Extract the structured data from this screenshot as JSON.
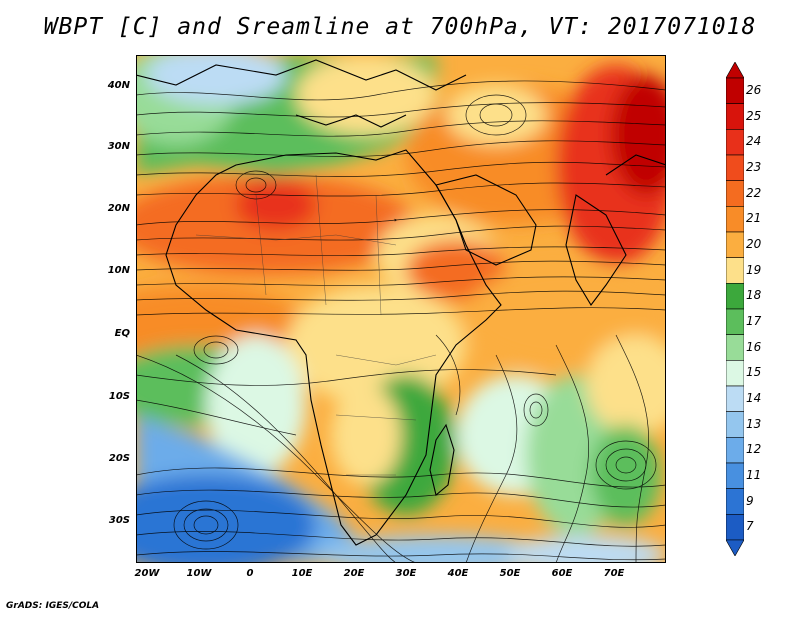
{
  "title": "WBPT [C] and Sreamline at 700hPa, VT: 2017071018",
  "footer": "GrADS: IGES/COLA",
  "y_axis": [
    "40N",
    "30N",
    "20N",
    "10N",
    "EQ",
    "10S",
    "20S",
    "30S"
  ],
  "x_axis": [
    "20W",
    "10W",
    "0",
    "10E",
    "20E",
    "30E",
    "40E",
    "50E",
    "60E",
    "70E"
  ],
  "colorbar": {
    "labels": [
      "26",
      "25",
      "24",
      "23",
      "22",
      "21",
      "20",
      "19",
      "18",
      "17",
      "16",
      "15",
      "14",
      "13",
      "12",
      "11",
      "9",
      "7"
    ],
    "colors": [
      "#c00000",
      "#d8140c",
      "#e8301a",
      "#f04c1c",
      "#f46c20",
      "#f88c28",
      "#fbae40",
      "#fde08a",
      "#3ca83c",
      "#5cbe5c",
      "#98dc98",
      "#dcf8e4",
      "#bcdcf4",
      "#94c6ee",
      "#6cacea",
      "#4890e0",
      "#2c74d4",
      "#1c5cc4"
    ],
    "top_arrow_color": "#c00000",
    "bottom_arrow_color": "#1c5cc4"
  }
}
